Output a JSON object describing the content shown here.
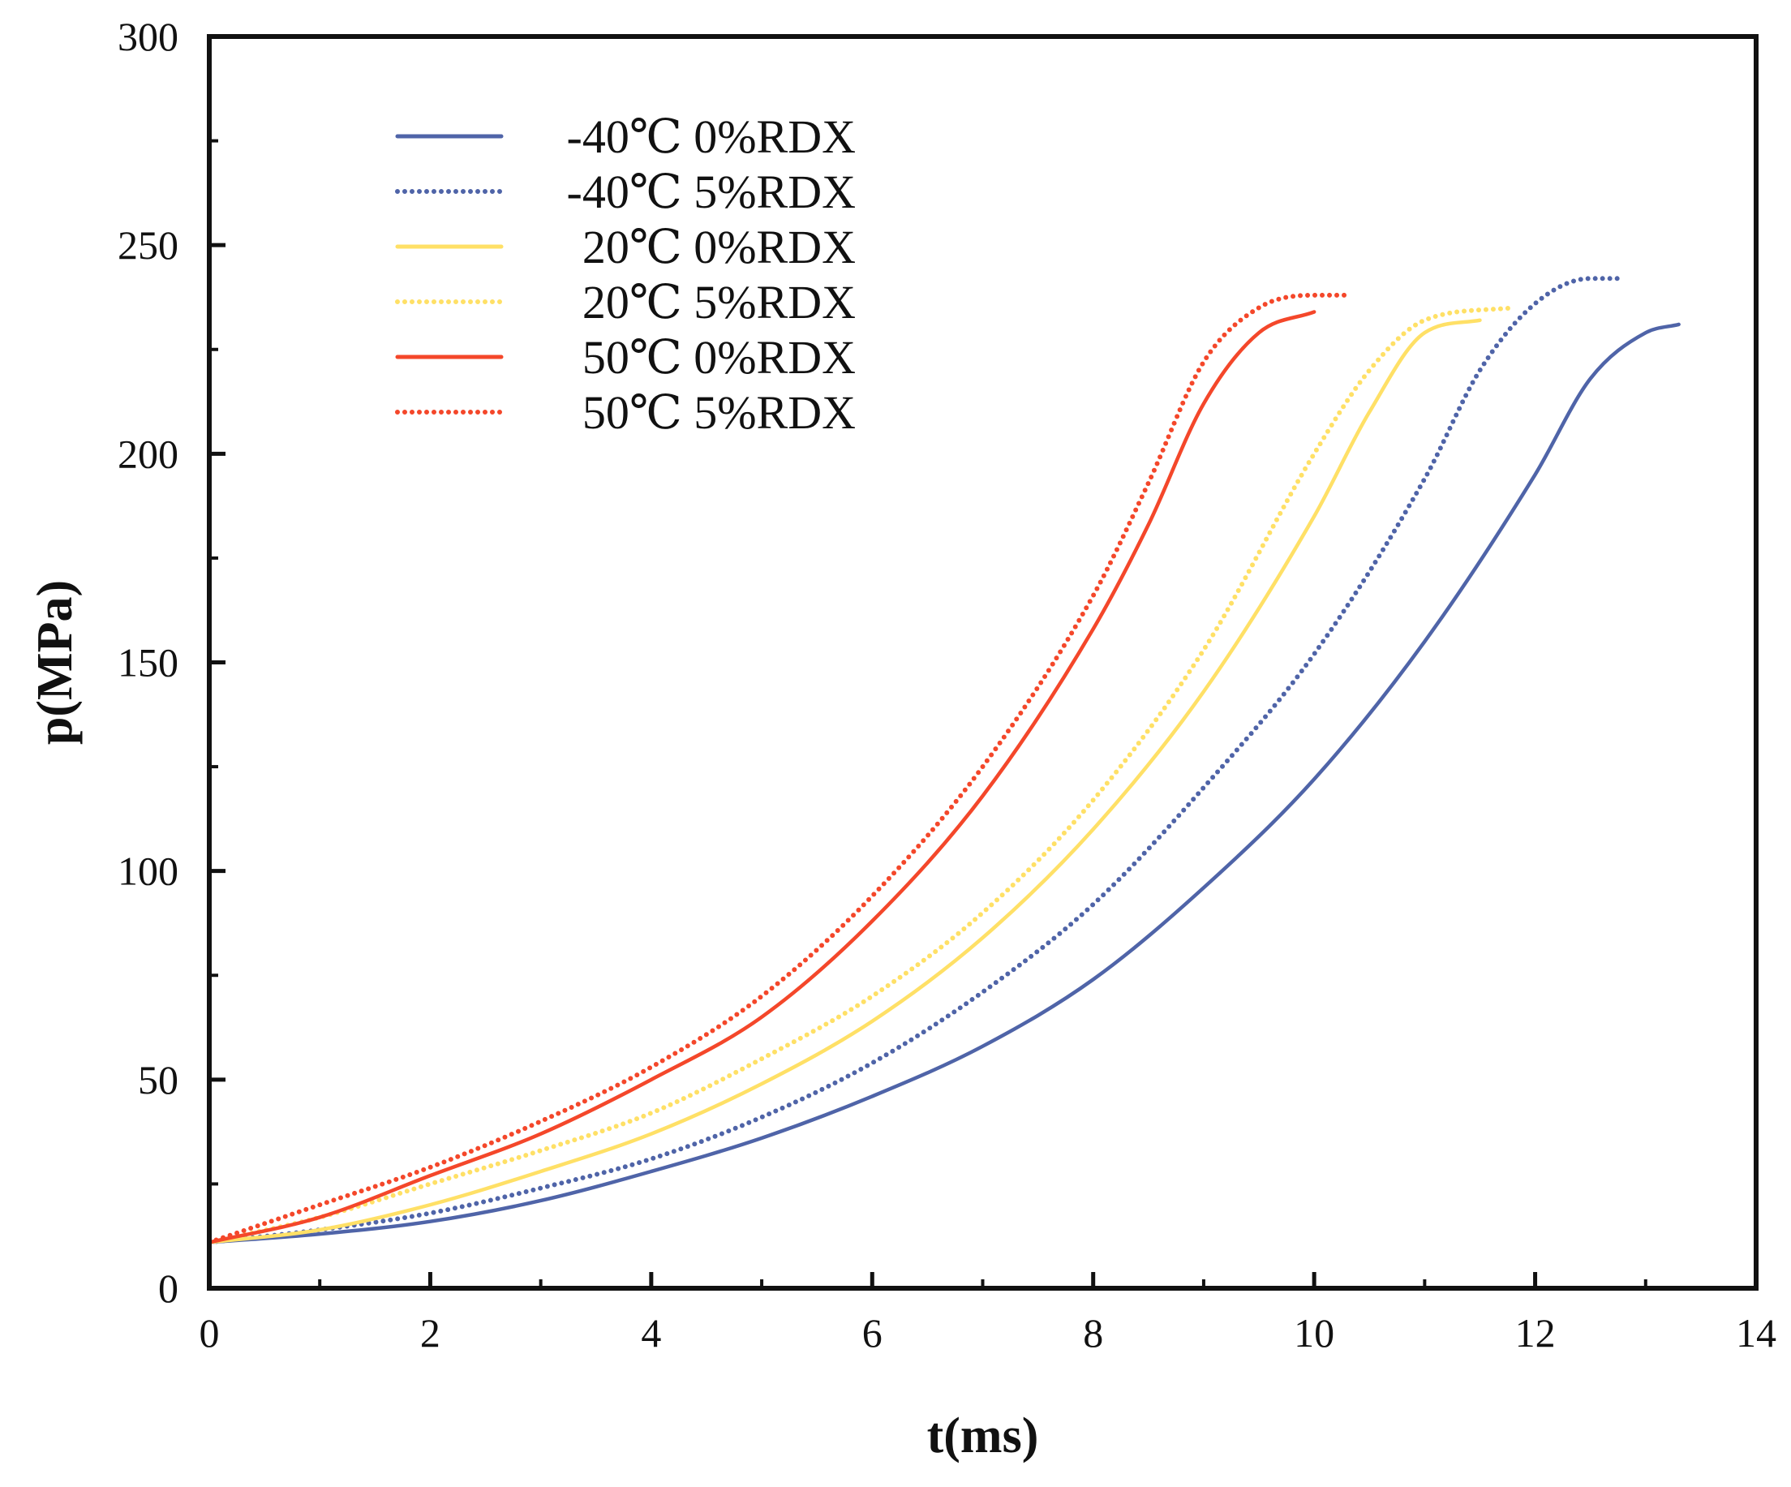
{
  "chart_data": {
    "type": "line",
    "xlabel": "t(ms)",
    "ylabel": "p(MPa)",
    "xlim": [
      0,
      14
    ],
    "ylim": [
      0,
      300
    ],
    "xticks": [
      0,
      2,
      4,
      6,
      8,
      10,
      12,
      14
    ],
    "yticks": [
      0,
      50,
      100,
      150,
      200,
      250,
      300
    ],
    "grid": false,
    "legend_position": "top-left",
    "series": [
      {
        "name": "-40℃ 0%RDX",
        "color": "#4F64A8",
        "style": "solid",
        "x": [
          0,
          1,
          2,
          3,
          4,
          5,
          6,
          7,
          8,
          9,
          10,
          11,
          12,
          12.5,
          13,
          13.3
        ],
        "y": [
          11,
          13,
          16,
          21,
          28,
          36,
          46,
          58,
          74,
          96,
          122,
          155,
          195,
          218,
          229,
          231
        ]
      },
      {
        "name": "-40℃ 5%RDX",
        "color": "#4F64A8",
        "style": "dotted",
        "x": [
          0,
          1,
          2,
          3,
          4,
          5,
          6,
          7,
          8,
          9,
          10,
          11,
          11.5,
          12,
          12.5,
          12.8
        ],
        "y": [
          11,
          14,
          18,
          24,
          31,
          41,
          54,
          71,
          92,
          120,
          152,
          194,
          220,
          236,
          242,
          242
        ]
      },
      {
        "name": "20℃ 0%RDX",
        "color": "#FFE066",
        "style": "solid",
        "x": [
          0,
          1,
          2,
          3,
          4,
          5,
          6,
          7,
          8,
          9,
          10,
          10.5,
          11,
          11.5
        ],
        "y": [
          11,
          14,
          20,
          28,
          37,
          49,
          64,
          84,
          110,
          143,
          185,
          210,
          229,
          232
        ]
      },
      {
        "name": "20℃ 5%RDX",
        "color": "#FFE066",
        "style": "dotted",
        "x": [
          0,
          1,
          2,
          3,
          4,
          5,
          6,
          7,
          8,
          9,
          10,
          10.5,
          11,
          11.8
        ],
        "y": [
          11,
          17,
          25,
          33,
          42,
          55,
          70,
          90,
          117,
          153,
          200,
          220,
          232,
          235
        ]
      },
      {
        "name": "50℃ 0%RDX",
        "color": "#F4472A",
        "style": "solid",
        "x": [
          0,
          1,
          2,
          3,
          4,
          5,
          6,
          7,
          8,
          8.5,
          9,
          9.5,
          10
        ],
        "y": [
          11,
          17,
          27,
          37,
          50,
          65,
          88,
          118,
          158,
          183,
          212,
          229,
          234
        ]
      },
      {
        "name": "50℃ 5%RDX",
        "color": "#F4472A",
        "style": "dotted",
        "x": [
          0,
          1,
          2,
          3,
          4,
          5,
          6,
          7,
          8,
          8.5,
          9,
          9.5,
          10,
          10.3
        ],
        "y": [
          11,
          20,
          29,
          40,
          53,
          70,
          94,
          125,
          166,
          193,
          222,
          235,
          238,
          238
        ]
      }
    ]
  }
}
